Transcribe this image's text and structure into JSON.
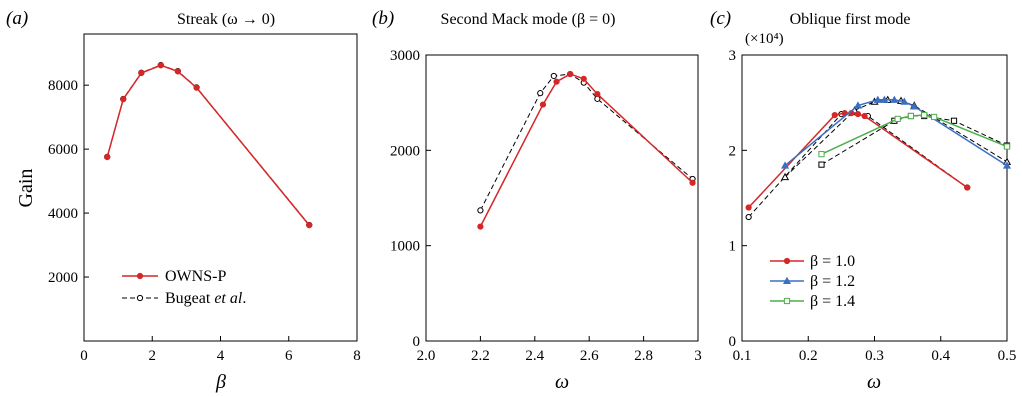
{
  "colors": {
    "red": "#d62728",
    "black": "#000000",
    "blue": "#3a6fc4",
    "green": "#4daf4a"
  },
  "shared": {
    "ylabel": "Gain"
  },
  "chart_data": [
    {
      "panel": "(a)",
      "type": "line",
      "title": "Streak (ω → 0)",
      "xlabel": "β",
      "ylabel": "Gain",
      "xlim": [
        0,
        8
      ],
      "ylim": [
        0,
        9600
      ],
      "xticks": [
        0,
        2,
        4,
        6,
        8
      ],
      "yticks": [
        2000,
        4000,
        6000,
        8000
      ],
      "grid": false,
      "legend_position": "lower-left",
      "series": [
        {
          "name": "OWNS-P",
          "color": "red",
          "dash": false,
          "marker": "circle-filled",
          "x": [
            0.68,
            1.15,
            1.68,
            2.25,
            2.75,
            3.3,
            6.6
          ],
          "y": [
            5750,
            7560,
            8380,
            8620,
            8430,
            7920,
            3620
          ]
        },
        {
          "name": "Bugeat et al.",
          "color": "black",
          "dash": true,
          "marker": "circle-open",
          "x": [
            0.68,
            1.15,
            1.68,
            2.25,
            2.75,
            3.3,
            6.6
          ],
          "y": [
            5760,
            7570,
            8390,
            8630,
            8440,
            7930,
            3630
          ]
        }
      ]
    },
    {
      "panel": "(b)",
      "type": "line",
      "title": "Second Mack mode (β = 0)",
      "xlabel": "ω",
      "xlim": [
        2.0,
        3.0
      ],
      "ylim": [
        0,
        3000
      ],
      "xticks": [
        "2.0",
        "2.2",
        "2.4",
        "2.6",
        "2.8",
        "3"
      ],
      "yticks": [
        0,
        1000,
        2000,
        3000
      ],
      "grid": false,
      "series": [
        {
          "name": "OWNS-P",
          "color": "red",
          "dash": false,
          "marker": "circle-filled",
          "x": [
            2.2,
            2.43,
            2.48,
            2.53,
            2.58,
            2.63,
            2.98
          ],
          "y": [
            1200,
            2480,
            2720,
            2800,
            2750,
            2590,
            1660
          ]
        },
        {
          "name": "Bugeat et al.",
          "color": "black",
          "dash": true,
          "marker": "circle-open",
          "x": [
            2.2,
            2.42,
            2.47,
            2.53,
            2.58,
            2.63,
            2.98
          ],
          "y": [
            1370,
            2600,
            2780,
            2800,
            2710,
            2540,
            1700
          ]
        }
      ]
    },
    {
      "panel": "(c)",
      "type": "line",
      "title": "Oblique first mode",
      "xlabel": "ω",
      "y_multiplier": "(×10⁴)",
      "xlim": [
        0.1,
        0.5
      ],
      "ylim": [
        0,
        3
      ],
      "xticks": [
        "0.1",
        "0.2",
        "0.3",
        "0.4",
        "0.5"
      ],
      "yticks": [
        "0",
        "1",
        "2",
        "3"
      ],
      "grid": false,
      "legend_position": "lower-left",
      "series": [
        {
          "name": "β = 1.0",
          "color": "red",
          "dash": false,
          "marker": "circle-filled",
          "x": [
            0.11,
            0.24,
            0.255,
            0.265,
            0.275,
            0.285,
            0.44
          ],
          "y": [
            1.4,
            2.37,
            2.39,
            2.39,
            2.38,
            2.36,
            1.61
          ]
        },
        {
          "name": "β = 1.2",
          "color": "blue",
          "dash": false,
          "marker": "triangle-filled",
          "x": [
            0.165,
            0.275,
            0.305,
            0.315,
            0.33,
            0.345,
            0.36,
            0.5
          ],
          "y": [
            1.84,
            2.47,
            2.53,
            2.53,
            2.53,
            2.51,
            2.46,
            1.84
          ]
        },
        {
          "name": "β = 1.4",
          "color": "green",
          "dash": false,
          "marker": "square-open",
          "x": [
            0.22,
            0.335,
            0.355,
            0.375,
            0.39,
            0.5
          ],
          "y": [
            1.96,
            2.33,
            2.36,
            2.37,
            2.35,
            2.04
          ]
        },
        {
          "name": "",
          "color": "black",
          "dash": true,
          "marker": "circle-open",
          "x": [
            0.11,
            0.25,
            0.27,
            0.29,
            0.44
          ],
          "y": [
            1.3,
            2.38,
            2.4,
            2.36,
            1.61
          ]
        },
        {
          "name": "",
          "color": "black",
          "dash": true,
          "marker": "triangle-open",
          "x": [
            0.165,
            0.27,
            0.3,
            0.32,
            0.34,
            0.36,
            0.5
          ],
          "y": [
            1.72,
            2.42,
            2.51,
            2.53,
            2.52,
            2.47,
            1.88
          ]
        },
        {
          "name": "",
          "color": "black",
          "dash": true,
          "marker": "square-open",
          "x": [
            0.22,
            0.33,
            0.355,
            0.375,
            0.42,
            0.5
          ],
          "y": [
            1.85,
            2.31,
            2.36,
            2.36,
            2.31,
            2.05
          ]
        }
      ]
    }
  ]
}
